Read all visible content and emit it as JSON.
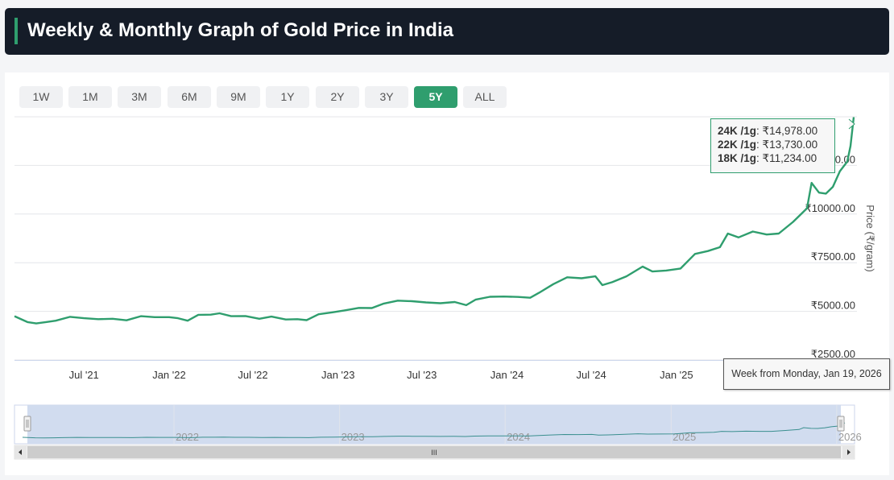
{
  "header": {
    "title": "Weekly & Monthly Graph of Gold Price in India",
    "accent": "#2f9e6e"
  },
  "ranges": [
    {
      "label": "1W"
    },
    {
      "label": "1M"
    },
    {
      "label": "3M"
    },
    {
      "label": "6M"
    },
    {
      "label": "9M"
    },
    {
      "label": "1Y"
    },
    {
      "label": "2Y"
    },
    {
      "label": "3Y"
    },
    {
      "label": "5Y",
      "active": true
    },
    {
      "label": "ALL"
    }
  ],
  "tooltip": {
    "rows": [
      {
        "label": "24K /1g",
        "value": "₹14,978.00"
      },
      {
        "label": "22K /1g",
        "value": "₹13,730.00"
      },
      {
        "label": "18K /1g",
        "value": "₹11,234.00"
      }
    ]
  },
  "crosshair_label": "Week from Monday, Jan 19, 2026",
  "chart_data": {
    "type": "line",
    "title": "",
    "xlabel": "",
    "ylabel": "Price (₹/gram)",
    "ylim": [
      2500,
      15000
    ],
    "y_ticks": [
      "₹2500.00",
      "₹5000.00",
      "₹7500.00",
      "₹10000.00",
      "₹12500.00"
    ],
    "y_tick_values": [
      2500,
      5000,
      7500,
      10000,
      12500
    ],
    "x_ticks": [
      {
        "label": "Jul '21",
        "date": "2021-07-01"
      },
      {
        "label": "Jan '22",
        "date": "2022-01-01"
      },
      {
        "label": "Jul '22",
        "date": "2022-07-01"
      },
      {
        "label": "Jan '23",
        "date": "2023-01-01"
      },
      {
        "label": "Jul '23",
        "date": "2023-07-01"
      },
      {
        "label": "Jan '24",
        "date": "2024-01-01"
      },
      {
        "label": "Jul '24",
        "date": "2024-07-01"
      },
      {
        "label": "Jan '25",
        "date": "2025-01-01"
      }
    ],
    "series": [
      {
        "name": "24K /1g",
        "color": "#2f9e6e",
        "points": [
          [
            "2021-02-01",
            4750
          ],
          [
            "2021-03-01",
            4450
          ],
          [
            "2021-03-20",
            4380
          ],
          [
            "2021-04-10",
            4450
          ],
          [
            "2021-05-01",
            4520
          ],
          [
            "2021-06-01",
            4720
          ],
          [
            "2021-07-01",
            4650
          ],
          [
            "2021-08-01",
            4600
          ],
          [
            "2021-09-01",
            4620
          ],
          [
            "2021-10-01",
            4540
          ],
          [
            "2021-11-01",
            4750
          ],
          [
            "2021-12-01",
            4700
          ],
          [
            "2022-01-01",
            4700
          ],
          [
            "2022-01-20",
            4650
          ],
          [
            "2022-02-10",
            4520
          ],
          [
            "2022-03-05",
            4820
          ],
          [
            "2022-04-01",
            4830
          ],
          [
            "2022-04-20",
            4900
          ],
          [
            "2022-05-15",
            4750
          ],
          [
            "2022-06-15",
            4760
          ],
          [
            "2022-07-15",
            4620
          ],
          [
            "2022-08-10",
            4730
          ],
          [
            "2022-09-10",
            4580
          ],
          [
            "2022-10-05",
            4600
          ],
          [
            "2022-10-25",
            4550
          ],
          [
            "2022-11-20",
            4850
          ],
          [
            "2022-12-20",
            4950
          ],
          [
            "2023-01-15",
            5050
          ],
          [
            "2023-02-15",
            5180
          ],
          [
            "2023-03-15",
            5170
          ],
          [
            "2023-04-10",
            5400
          ],
          [
            "2023-05-10",
            5550
          ],
          [
            "2023-06-10",
            5520
          ],
          [
            "2023-07-10",
            5460
          ],
          [
            "2023-08-10",
            5420
          ],
          [
            "2023-09-10",
            5480
          ],
          [
            "2023-10-05",
            5320
          ],
          [
            "2023-10-25",
            5600
          ],
          [
            "2023-11-25",
            5750
          ],
          [
            "2023-12-25",
            5760
          ],
          [
            "2024-01-25",
            5740
          ],
          [
            "2024-02-20",
            5700
          ],
          [
            "2024-03-10",
            5950
          ],
          [
            "2024-04-10",
            6400
          ],
          [
            "2024-05-10",
            6750
          ],
          [
            "2024-06-10",
            6700
          ],
          [
            "2024-07-10",
            6800
          ],
          [
            "2024-07-25",
            6350
          ],
          [
            "2024-08-15",
            6500
          ],
          [
            "2024-09-15",
            6800
          ],
          [
            "2024-10-20",
            7300
          ],
          [
            "2024-11-10",
            7050
          ],
          [
            "2024-12-10",
            7100
          ],
          [
            "2025-01-10",
            7200
          ],
          [
            "2025-02-10",
            7950
          ],
          [
            "2025-03-10",
            8100
          ],
          [
            "2025-04-05",
            8300
          ],
          [
            "2025-04-22",
            9000
          ],
          [
            "2025-05-15",
            8800
          ],
          [
            "2025-06-15",
            9100
          ],
          [
            "2025-07-15",
            8950
          ],
          [
            "2025-08-10",
            9000
          ],
          [
            "2025-09-10",
            9600
          ],
          [
            "2025-10-10",
            10300
          ],
          [
            "2025-10-20",
            11600
          ],
          [
            "2025-11-05",
            11100
          ],
          [
            "2025-11-20",
            11050
          ],
          [
            "2025-12-05",
            11400
          ],
          [
            "2025-12-20",
            12200
          ],
          [
            "2026-01-05",
            12700
          ],
          [
            "2026-01-12",
            13500
          ],
          [
            "2026-01-19",
            14978
          ]
        ]
      }
    ],
    "navigator": {
      "labels": [
        {
          "label": "2022",
          "date": "2022-01-01"
        },
        {
          "label": "2023",
          "date": "2023-01-01"
        },
        {
          "label": "2024",
          "date": "2024-01-01"
        },
        {
          "label": "2025",
          "date": "2025-01-01"
        },
        {
          "label": "2026",
          "date": "2026-01-01"
        }
      ],
      "scrollbar_grip": "III"
    }
  }
}
